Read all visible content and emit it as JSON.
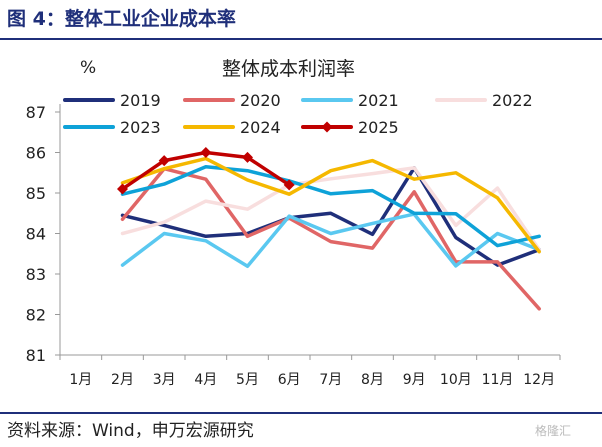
{
  "header": {
    "title": "图 4：整体工业企业成本率"
  },
  "source": "资料来源：Wind，申万宏源研究",
  "watermark": "格隆汇",
  "chart_data": {
    "type": "line",
    "title": "整体成本利润率",
    "ylabel": "%",
    "xlabel": "",
    "categories": [
      "1月",
      "2月",
      "3月",
      "4月",
      "5月",
      "6月",
      "7月",
      "8月",
      "9月",
      "10月",
      "11月",
      "12月"
    ],
    "ylim": [
      81,
      87
    ],
    "yticks": [
      81,
      82,
      83,
      84,
      85,
      86,
      87
    ],
    "grid": false,
    "legend_position": "top",
    "series": [
      {
        "name": "2019",
        "color": "#1f2f7a",
        "values": [
          null,
          84.45,
          84.2,
          83.93,
          84.0,
          84.39,
          84.5,
          83.98,
          85.62,
          83.9,
          83.22,
          83.6
        ]
      },
      {
        "name": "2020",
        "color": "#e06666",
        "values": [
          null,
          84.35,
          85.6,
          85.34,
          83.93,
          84.38,
          83.8,
          83.64,
          85.03,
          83.3,
          83.3,
          82.14
        ]
      },
      {
        "name": "2021",
        "color": "#5ac8f0",
        "values": [
          null,
          83.22,
          84.0,
          83.82,
          83.19,
          84.43,
          84.0,
          84.25,
          84.48,
          83.2,
          84.0,
          83.6
        ]
      },
      {
        "name": "2022",
        "color": "#f8dede",
        "values": [
          null,
          84.0,
          84.28,
          84.8,
          84.6,
          85.2,
          85.35,
          85.48,
          85.62,
          84.2,
          85.12,
          83.6
        ]
      },
      {
        "name": "2023",
        "color": "#0ea2d8",
        "values": [
          null,
          84.97,
          85.22,
          85.65,
          85.55,
          85.3,
          84.98,
          85.06,
          84.5,
          84.49,
          83.7,
          83.93
        ]
      },
      {
        "name": "2024",
        "color": "#f5b800",
        "values": [
          null,
          85.25,
          85.6,
          85.85,
          85.32,
          84.97,
          85.55,
          85.8,
          85.34,
          85.5,
          84.88,
          83.55
        ]
      },
      {
        "name": "2025",
        "color": "#c00000",
        "marker": "diamond",
        "values": [
          null,
          85.1,
          85.8,
          86.0,
          85.88,
          85.2,
          null,
          null,
          null,
          null,
          null,
          null
        ]
      }
    ]
  }
}
